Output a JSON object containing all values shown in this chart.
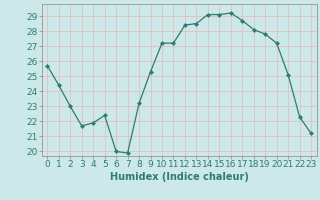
{
  "x": [
    0,
    1,
    2,
    3,
    4,
    5,
    6,
    7,
    8,
    9,
    10,
    11,
    12,
    13,
    14,
    15,
    16,
    17,
    18,
    19,
    20,
    21,
    22,
    23
  ],
  "y": [
    25.7,
    24.4,
    23.0,
    21.7,
    21.9,
    22.4,
    20.0,
    19.9,
    23.2,
    25.3,
    27.2,
    27.2,
    28.4,
    28.5,
    29.1,
    29.1,
    29.2,
    28.7,
    28.1,
    27.8,
    27.2,
    25.1,
    22.3,
    21.2
  ],
  "xlabel": "Humidex (Indice chaleur)",
  "yticks": [
    20,
    21,
    22,
    23,
    24,
    25,
    26,
    27,
    28,
    29
  ],
  "xticks": [
    0,
    1,
    2,
    3,
    4,
    5,
    6,
    7,
    8,
    9,
    10,
    11,
    12,
    13,
    14,
    15,
    16,
    17,
    18,
    19,
    20,
    21,
    22,
    23
  ],
  "line_color": "#2e7d6e",
  "marker": "D",
  "marker_size": 2.0,
  "bg_color": "#cce8e8",
  "grid_color": "#e8b8b8",
  "xlabel_fontsize": 7,
  "tick_fontsize": 6.5
}
